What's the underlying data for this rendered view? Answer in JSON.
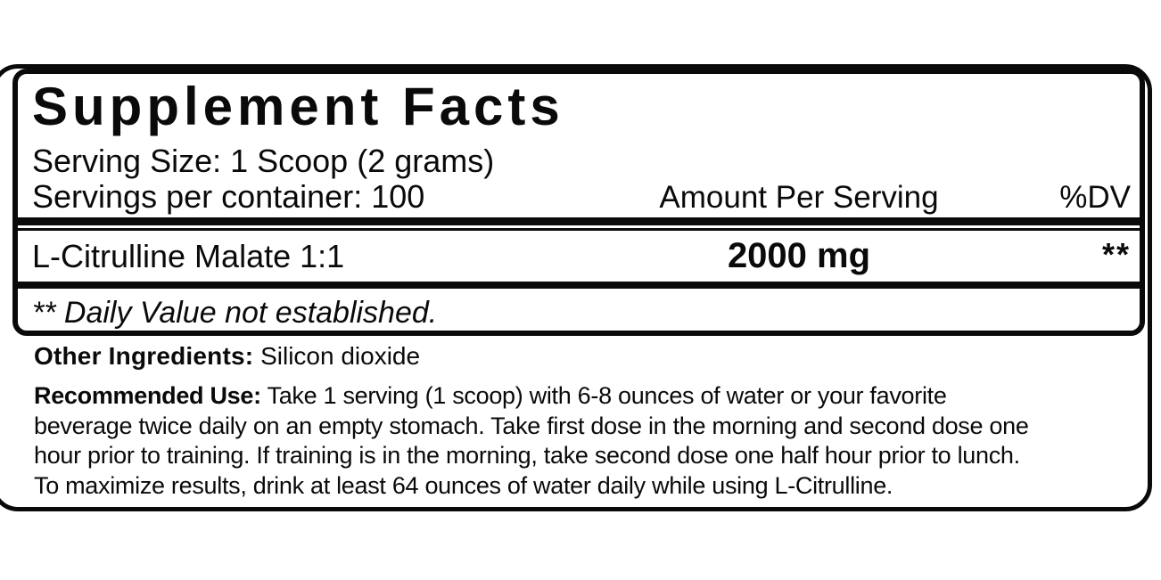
{
  "panel": {
    "title": "Supplement Facts",
    "serving_size": "Serving Size: 1 Scoop (2 grams)",
    "servings_per_container": "Servings per container: 100",
    "amount_header": "Amount Per Serving",
    "dv_header": "%DV",
    "rows": [
      {
        "name": "L-Citrulline Malate 1:1",
        "amount": "2000 mg",
        "dv": "**"
      }
    ],
    "footnote": "** Daily Value not established."
  },
  "other_ingredients": {
    "label": "Other Ingredients:",
    "value": "Silicon dioxide"
  },
  "recommended_use": {
    "label": "Recommended Use:",
    "line1": "Take 1 serving (1 scoop) with 6-8 ounces of water or your favorite",
    "line2": "beverage twice daily on an empty stomach. Take first dose in the morning and second dose one",
    "line3": "hour prior to training. If training is in the morning, take second dose one half hour prior to lunch.",
    "line4": "To maximize results, drink at least 64 ounces of water daily while using L-Citrulline."
  },
  "colors": {
    "ink": "#0a0a0a",
    "paper": "#ffffff"
  }
}
